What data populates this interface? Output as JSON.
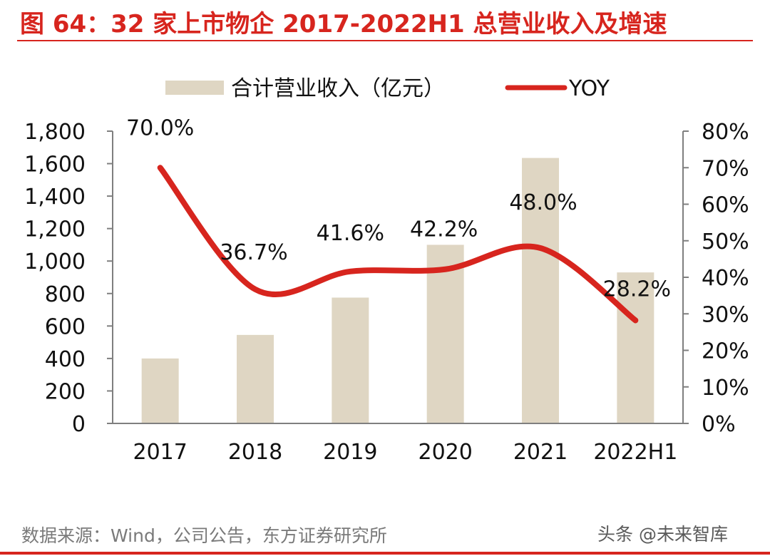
{
  "title": "图 64：32 家上市物企 2017-2022H1 总营业收入及增速",
  "source_note": "数据来源：Wind，公司公告，东方证券研究所",
  "watermark": "头条 @未来智库",
  "colors": {
    "bar": "#dfd6c3",
    "line": "#d7251e",
    "title": "#d7251e",
    "axis": "#7f7f7f",
    "text": "#111111"
  },
  "chart_data": {
    "type": "bar",
    "categories": [
      "2017",
      "2018",
      "2019",
      "2020",
      "2021",
      "2022H1"
    ],
    "series": [
      {
        "name": "合计营业收入（亿元）",
        "type": "bar",
        "axis": "left",
        "values": [
          400,
          545,
          775,
          1100,
          1635,
          930
        ]
      },
      {
        "name": "YOY",
        "type": "line",
        "axis": "right",
        "values": [
          70.0,
          36.7,
          41.6,
          42.2,
          48.0,
          28.2
        ],
        "labels": [
          "70.0%",
          "36.7%",
          "41.6%",
          "42.2%",
          "48.0%",
          "28.2%"
        ]
      }
    ],
    "y_left": {
      "min": 0,
      "max": 1800,
      "ticks": [
        "0",
        "200",
        "400",
        "600",
        "800",
        "1,000",
        "1,200",
        "1,400",
        "1,600",
        "1,800"
      ]
    },
    "y_right": {
      "min": 0,
      "max": 80,
      "ticks": [
        "0%",
        "10%",
        "20%",
        "30%",
        "40%",
        "50%",
        "60%",
        "70%",
        "80%"
      ]
    },
    "legend": {
      "position": "top",
      "entries": [
        "合计营业收入（亿元）",
        "YOY"
      ]
    }
  }
}
